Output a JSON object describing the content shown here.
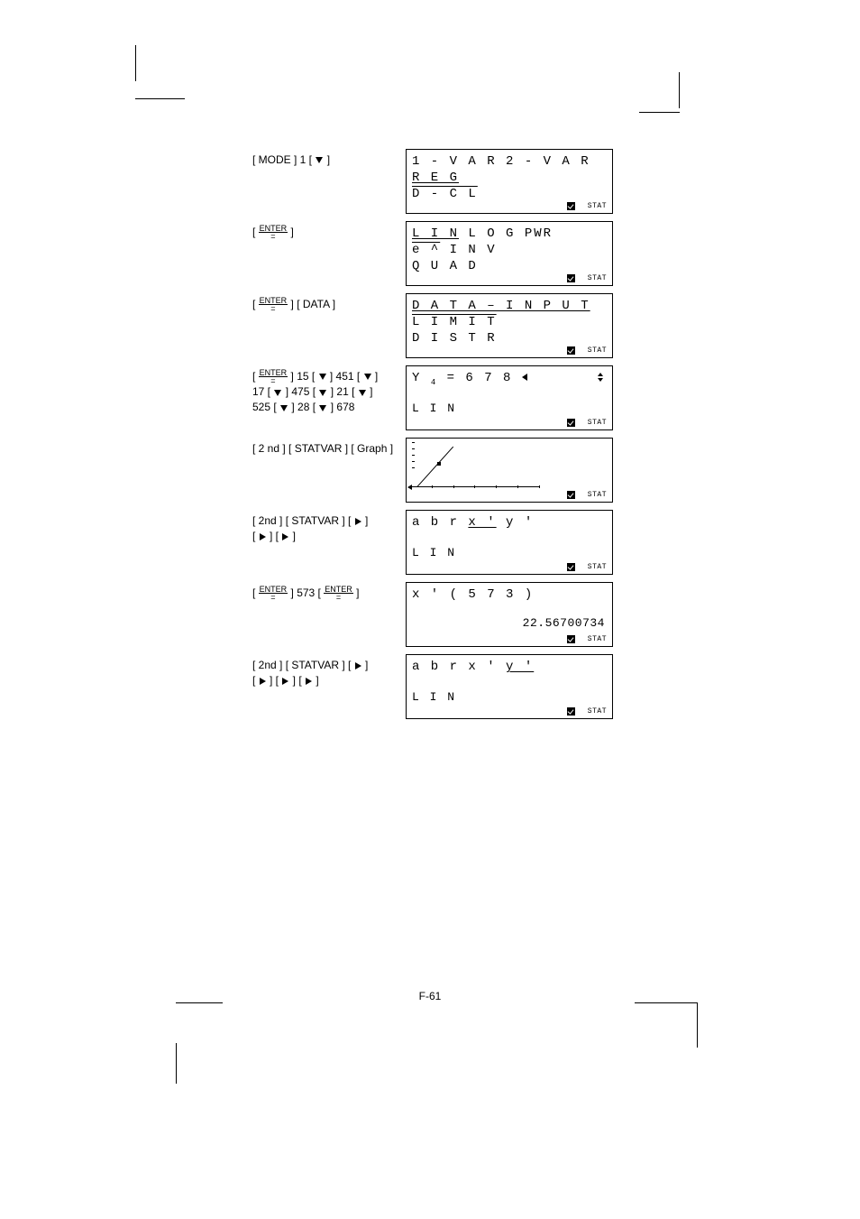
{
  "page_number": "F-61",
  "rows": [
    {
      "screen": {
        "line1": "1 - V A R   2 - V A R",
        "line2_und": "R E G",
        "line3_ovr": "D - C L",
        "stat": "STAT"
      }
    },
    {
      "screen": {
        "line1_parts": {
          "a_und": "L I N",
          "b": "   L O G    PWR"
        },
        "line2_parts": {
          "a_ovr": "e ^",
          "b": "    I N V"
        },
        "line3": "Q U A D",
        "stat": "STAT"
      }
    },
    {
      "key_post": " ] [ DATA ]",
      "screen": {
        "line1_und": "D A T A – I N P U T",
        "line2_ovr": "L I M I T",
        "line3": "D I S T R",
        "stat": "STAT"
      }
    },
    {
      "key_seq_parts": [
        " ] 15 [ ",
        " ] 451 [ ",
        " ]",
        "17 [ ",
        " ] 475 [ ",
        " ] 21 [ ",
        " ]",
        "525 [ ",
        " ] 28 [ ",
        " ] 678"
      ],
      "screen": {
        "y_line_pre": "Y ",
        "y_sub": "4",
        "y_line_post": " = 6 7 8 ",
        "lin": "L I N",
        "stat": "STAT"
      }
    },
    {
      "key_seq": "[ 2 nd ] [ STATVAR ] [ Graph ]",
      "graph": true,
      "stat": "STAT"
    },
    {
      "key_seq_label": "[ 2nd ] [ STATVAR ] [ ",
      "key_seq_post": " ]",
      "right_arrows_line2": 2,
      "screen": {
        "menu_pre": "a     b     r   ",
        "menu_und": "x '",
        "menu_post": "     y '",
        "lin": "L I N",
        "stat": "STAT"
      }
    },
    {
      "key_573": " ] 573 [ ",
      "screen": {
        "line1": "x ' ( 5 7 3 )",
        "result": "22.56700734",
        "stat": "STAT"
      }
    },
    {
      "key_seq_label": "[ 2nd ] [ STATVAR ] [ ",
      "key_seq_post": " ]",
      "right_arrows_line2": 3,
      "screen": {
        "menu_pre": "a    b    r    x '     ",
        "menu_und": "y '",
        "lin": "L I N",
        "stat": "STAT"
      }
    }
  ]
}
